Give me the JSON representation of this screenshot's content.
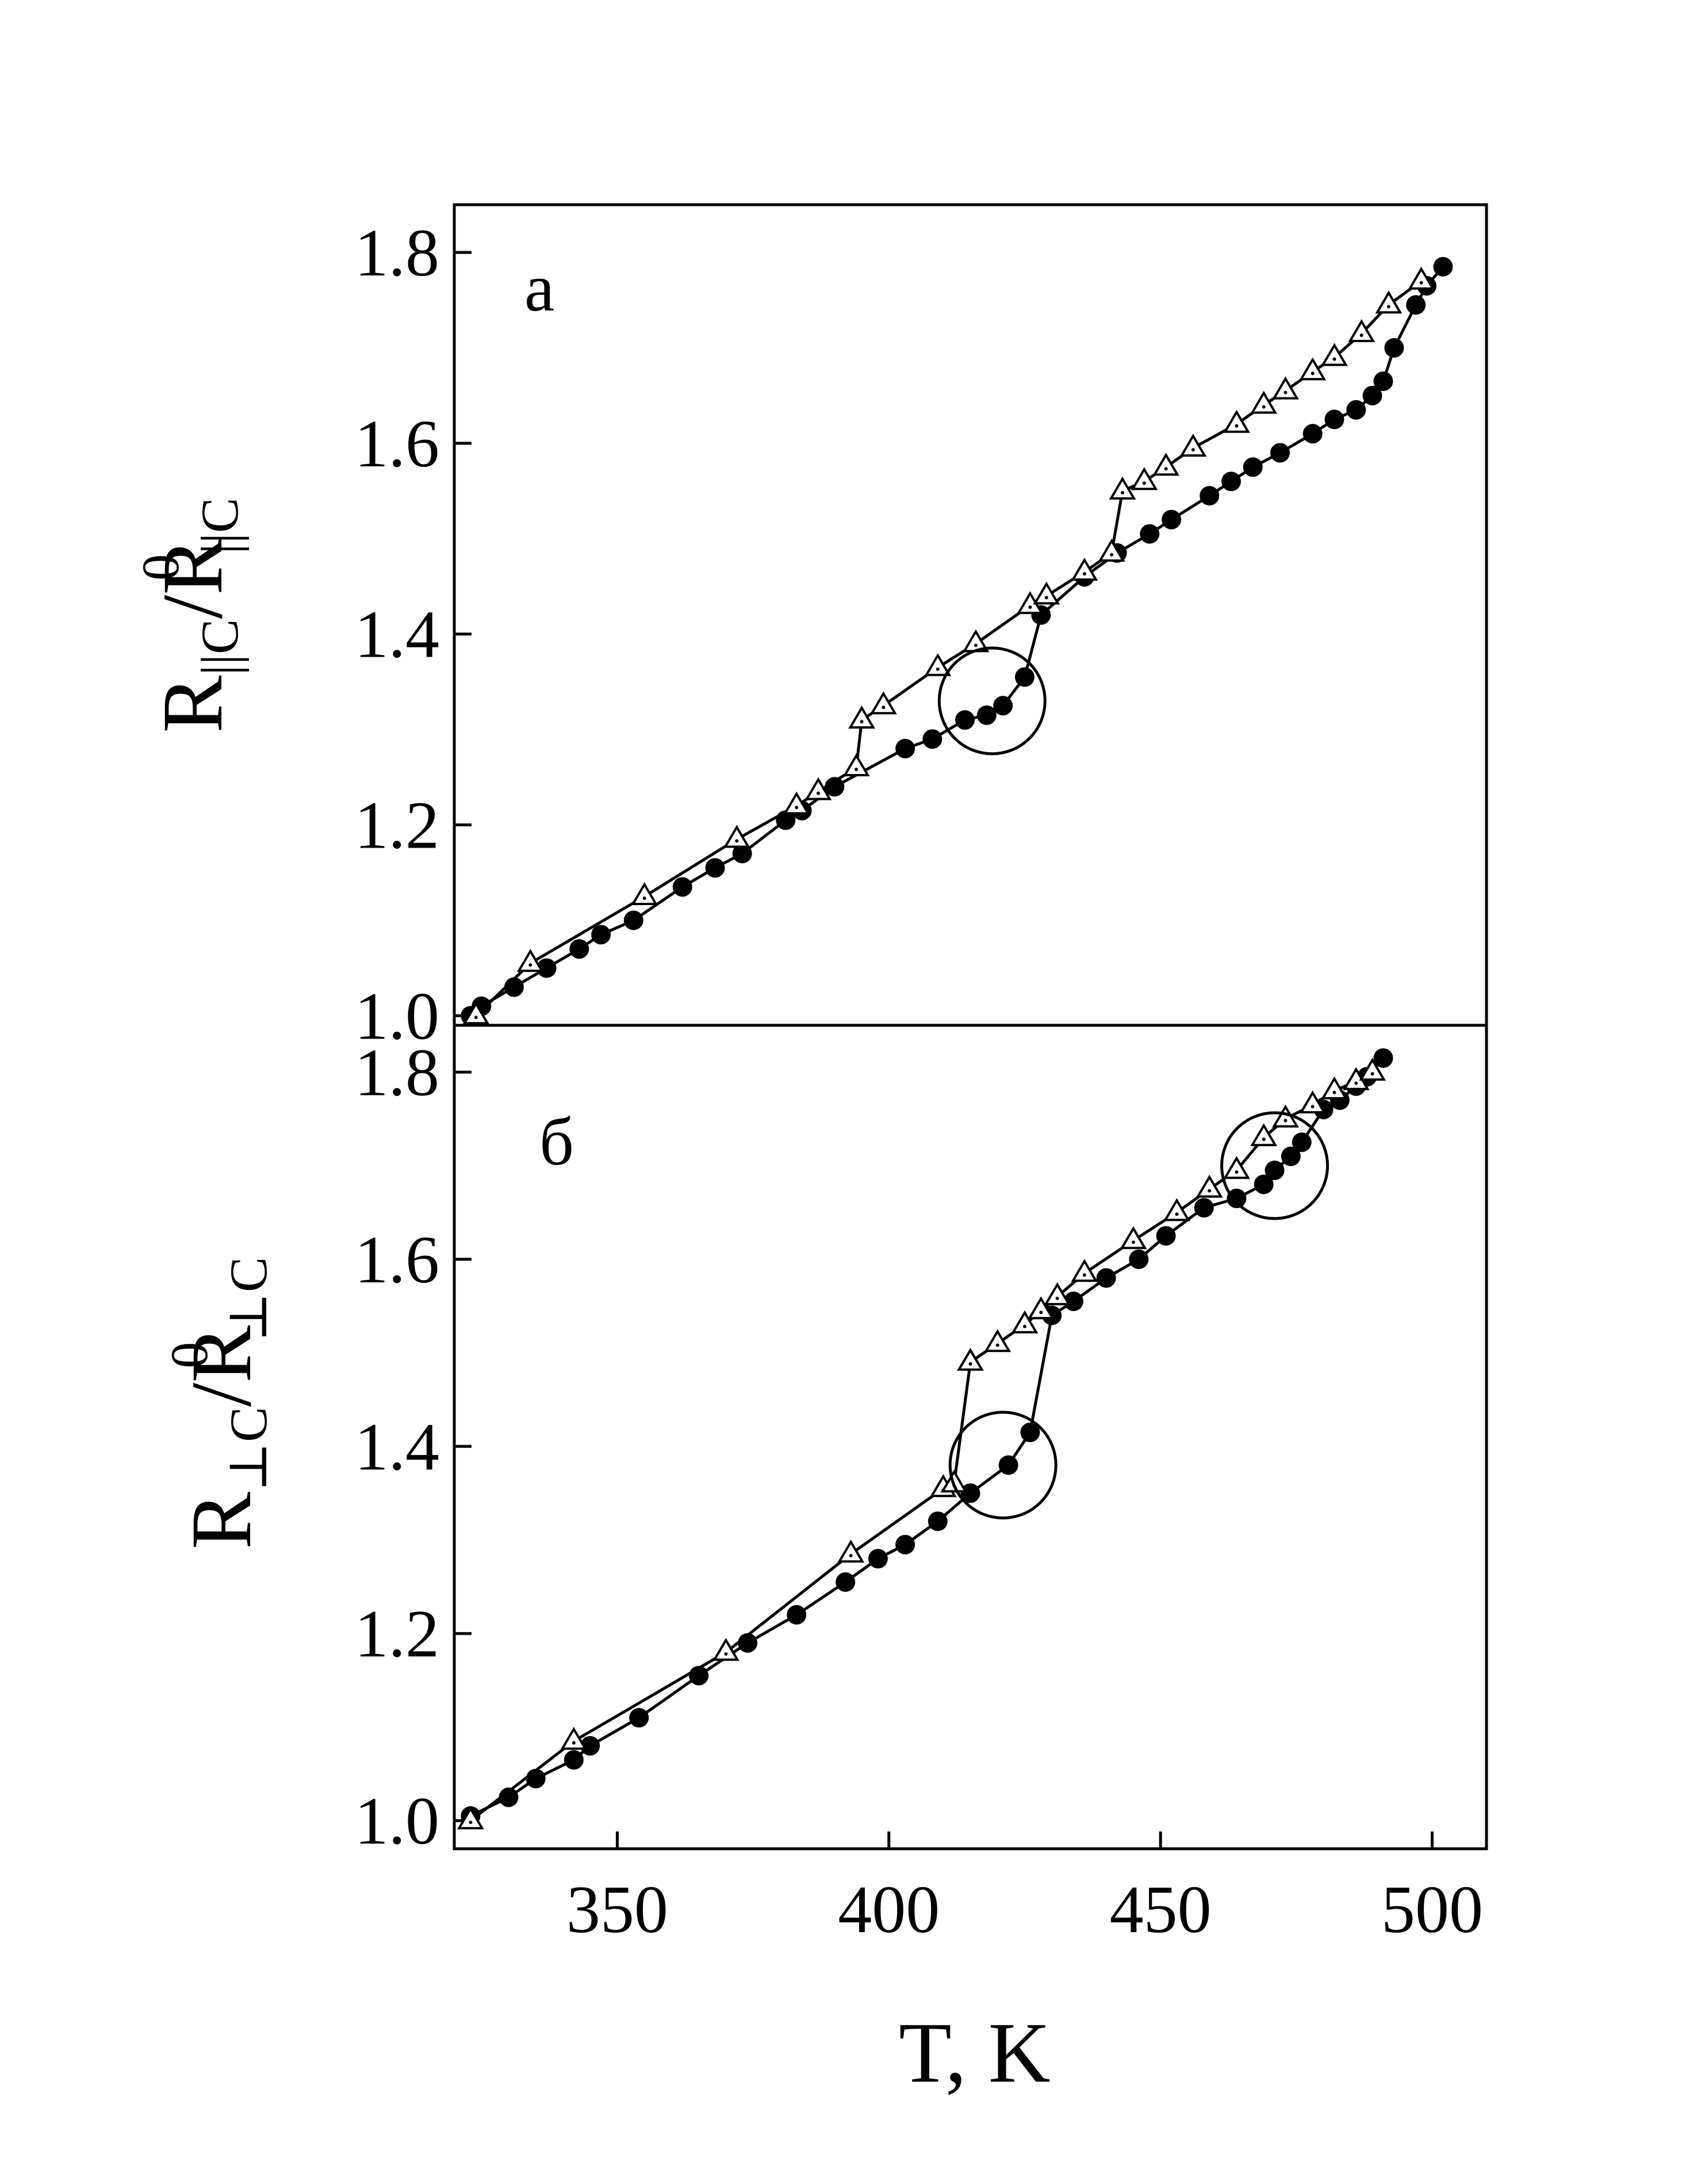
{
  "chart_data": [
    {
      "type": "line",
      "panel_label": "а",
      "ylabel": {
        "base": "R",
        "sub": "||C",
        "slash": "/",
        "base2": "R",
        "sup2": "0",
        "sub2": "||C"
      },
      "xlim": [
        320,
        510
      ],
      "ylim": [
        0.99,
        1.85
      ],
      "yticks": [
        1.0,
        1.2,
        1.4,
        1.6,
        1.8
      ],
      "ytick_labels": [
        "1.0",
        "1.2",
        "1.4",
        "1.6",
        "1.8"
      ],
      "grid": false,
      "series": [
        {
          "marker": "filled-circle",
          "x": [
            323,
            325,
            331,
            337,
            343,
            347,
            353,
            362,
            368,
            373,
            381,
            384,
            390,
            403,
            408,
            414,
            418,
            421,
            425,
            428,
            436,
            442,
            448,
            452,
            459,
            463,
            467,
            472,
            478,
            482,
            486,
            489,
            491,
            493,
            497,
            499,
            502
          ],
          "y": [
            1.0,
            1.01,
            1.03,
            1.05,
            1.07,
            1.085,
            1.1,
            1.135,
            1.155,
            1.17,
            1.205,
            1.215,
            1.24,
            1.28,
            1.29,
            1.31,
            1.315,
            1.325,
            1.355,
            1.42,
            1.46,
            1.485,
            1.505,
            1.52,
            1.545,
            1.56,
            1.575,
            1.59,
            1.61,
            1.625,
            1.635,
            1.65,
            1.665,
            1.7,
            1.745,
            1.765,
            1.785
          ]
        },
        {
          "marker": "open-triangle",
          "x": [
            324,
            334,
            355,
            372,
            383,
            387,
            394,
            395,
            399,
            409,
            416,
            426,
            429,
            436,
            441,
            443,
            447,
            451,
            456,
            464,
            469,
            473,
            478,
            482,
            487,
            492,
            498
          ],
          "y": [
            1.0,
            1.055,
            1.125,
            1.185,
            1.22,
            1.235,
            1.26,
            1.31,
            1.325,
            1.365,
            1.39,
            1.43,
            1.44,
            1.465,
            1.485,
            1.55,
            1.56,
            1.575,
            1.595,
            1.62,
            1.64,
            1.655,
            1.675,
            1.69,
            1.715,
            1.745,
            1.77
          ]
        }
      ],
      "annotations": [
        {
          "type": "circle",
          "x": 419,
          "y": 1.33
        }
      ]
    },
    {
      "type": "line",
      "panel_label": "б",
      "ylabel": {
        "base": "R",
        "sub": "⊥C",
        "slash": "/",
        "base2": "R",
        "sup2": "0",
        "sub2": "⊥C"
      },
      "xlabel": "T, K",
      "xlim": [
        320,
        510
      ],
      "ylim": [
        0.97,
        1.85
      ],
      "xticks": [
        350,
        400,
        450,
        500
      ],
      "xtick_labels": [
        "350",
        "400",
        "450",
        "500"
      ],
      "yticks": [
        1.0,
        1.2,
        1.4,
        1.6,
        1.8
      ],
      "ytick_labels": [
        "1.0",
        "1.2",
        "1.4",
        "1.6",
        "1.8"
      ],
      "grid": false,
      "series": [
        {
          "marker": "filled-circle",
          "x": [
            323,
            330,
            335,
            342,
            345,
            354,
            365,
            374,
            383,
            392,
            398,
            403,
            409,
            415,
            422,
            426,
            430,
            434,
            440,
            446,
            451,
            458,
            464,
            469,
            471,
            474,
            476,
            480,
            483,
            486,
            488,
            491
          ],
          "y": [
            1.005,
            1.025,
            1.045,
            1.065,
            1.08,
            1.11,
            1.155,
            1.19,
            1.22,
            1.255,
            1.28,
            1.295,
            1.32,
            1.35,
            1.38,
            1.415,
            1.54,
            1.555,
            1.58,
            1.6,
            1.625,
            1.655,
            1.665,
            1.68,
            1.695,
            1.71,
            1.725,
            1.76,
            1.77,
            1.785,
            1.795,
            1.815
          ]
        },
        {
          "marker": "open-triangle",
          "x": [
            323,
            342,
            370,
            393,
            410,
            412,
            415,
            420,
            425,
            428,
            431,
            436,
            445,
            453,
            459,
            464,
            469,
            473,
            478,
            482,
            486,
            489
          ],
          "y": [
            1.0,
            1.085,
            1.18,
            1.285,
            1.355,
            1.36,
            1.49,
            1.51,
            1.53,
            1.545,
            1.56,
            1.585,
            1.62,
            1.65,
            1.675,
            1.695,
            1.73,
            1.75,
            1.765,
            1.78,
            1.79,
            1.8
          ]
        }
      ],
      "annotations": [
        {
          "type": "circle",
          "x": 421,
          "y": 1.38
        },
        {
          "type": "circle",
          "x": 471,
          "y": 1.7
        }
      ]
    }
  ]
}
